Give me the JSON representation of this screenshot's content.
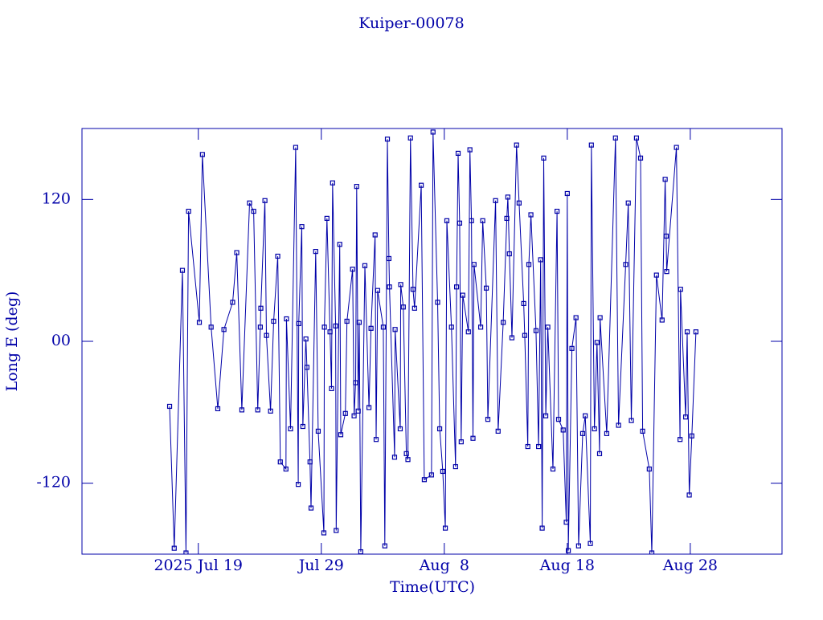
{
  "chart_data": {
    "type": "line",
    "title": "Kuiper-00078",
    "x_label": "Time(UTC)",
    "y_label": "Long E (deg)",
    "color": "#0000a8",
    "xlim": [
      "2025-07-09T13:00",
      "2025-09-04T11:00"
    ],
    "xticks": [
      {
        "value": "2025-07-19T00:00",
        "label": "2025 Jul 19"
      },
      {
        "value": "2025-07-29T00:00",
        "label": "Jul 29"
      },
      {
        "value": "2025-08-08T00:00",
        "label": "Aug  8"
      },
      {
        "value": "2025-08-18T00:00",
        "label": "Aug 18"
      },
      {
        "value": "2025-08-28T00:00",
        "label": "Aug 28"
      }
    ],
    "ylim": [
      -180,
      180
    ],
    "yticks": [
      -120,
      {
        "value": 0,
        "label": "00"
      },
      120
    ],
    "x": [
      "2025-07-16T16:00",
      "2025-07-17T01:00",
      "2025-07-17T17:00",
      "2025-07-18T00:00",
      "2025-07-18T05:00",
      "2025-07-19T02:00",
      "2025-07-19T08:00",
      "2025-07-20T01:00",
      "2025-07-20T14:00",
      "2025-07-21T02:00",
      "2025-07-21T19:00",
      "2025-07-22T03:00",
      "2025-07-22T13:00",
      "2025-07-23T04:00",
      "2025-07-23T12:00",
      "2025-07-23T20:00",
      "2025-07-24T01:00",
      "2025-07-24T02:00",
      "2025-07-24T10:00",
      "2025-07-24T13:00",
      "2025-07-24T21:00",
      "2025-07-25T03:00",
      "2025-07-25T11:00",
      "2025-07-25T16:00",
      "2025-07-26T03:00",
      "2025-07-26T04:00",
      "2025-07-26T12:00",
      "2025-07-26T22:00",
      "2025-07-27T03:00",
      "2025-07-27T04:00",
      "2025-07-27T10:00",
      "2025-07-27T12:00",
      "2025-07-27T18:00",
      "2025-07-27T20:00",
      "2025-07-28T02:00",
      "2025-07-28T04:00",
      "2025-07-28T13:00",
      "2025-07-28T18:00",
      "2025-07-29T05:00",
      "2025-07-29T06:00",
      "2025-07-29T11:00",
      "2025-07-29T17:00",
      "2025-07-29T20:00",
      "2025-07-29T22:00",
      "2025-07-30T04:00",
      "2025-07-30T05:00",
      "2025-07-30T12:00",
      "2025-07-30T14:00",
      "2025-07-30T23:00",
      "2025-07-31T02:00",
      "2025-07-31T13:00",
      "2025-07-31T16:00",
      "2025-07-31T19:00",
      "2025-07-31T21:00",
      "2025-08-01T00:00",
      "2025-08-01T02:00",
      "2025-08-01T05:00",
      "2025-08-01T13:00",
      "2025-08-01T21:00",
      "2025-08-02T01:00",
      "2025-08-02T09:00",
      "2025-08-02T11:00",
      "2025-08-02T14:00",
      "2025-08-03T01:00",
      "2025-08-03T04:00",
      "2025-08-03T09:00",
      "2025-08-03T12:00",
      "2025-08-03T13:00",
      "2025-08-03T23:00",
      "2025-08-04T00:00",
      "2025-08-04T10:00",
      "2025-08-04T11:00",
      "2025-08-04T16:00",
      "2025-08-04T22:00",
      "2025-08-05T01:00",
      "2025-08-05T06:00",
      "2025-08-05T11:00",
      "2025-08-05T14:00",
      "2025-08-06T03:00",
      "2025-08-06T09:00",
      "2025-08-06T23:00",
      "2025-08-07T02:00",
      "2025-08-07T11:00",
      "2025-08-07T15:00",
      "2025-08-07T21:00",
      "2025-08-08T02:00",
      "2025-08-08T05:00",
      "2025-08-08T14:00",
      "2025-08-08T22:00",
      "2025-08-09T00:00",
      "2025-08-09T03:00",
      "2025-08-09T06:00",
      "2025-08-09T09:00",
      "2025-08-09T12:00",
      "2025-08-09T23:00",
      "2025-08-10T02:00",
      "2025-08-10T05:00",
      "2025-08-10T08:00",
      "2025-08-10T10:00",
      "2025-08-10T23:00",
      "2025-08-11T03:00",
      "2025-08-11T10:00",
      "2025-08-11T13:00",
      "2025-08-12T04:00",
      "2025-08-12T09:00",
      "2025-08-12T19:00",
      "2025-08-13T02:00",
      "2025-08-13T04:00",
      "2025-08-13T07:00",
      "2025-08-13T12:00",
      "2025-08-13T21:00",
      "2025-08-14T02:00",
      "2025-08-14T11:00",
      "2025-08-14T13:00",
      "2025-08-14T19:00",
      "2025-08-14T21:00",
      "2025-08-15T01:00",
      "2025-08-15T11:00",
      "2025-08-15T16:00",
      "2025-08-15T20:00",
      "2025-08-15T23:00",
      "2025-08-16T02:00",
      "2025-08-16T06:00",
      "2025-08-16T10:00",
      "2025-08-16T20:00",
      "2025-08-17T04:00",
      "2025-08-17T07:00",
      "2025-08-17T16:00",
      "2025-08-17T22:00",
      "2025-08-18T00:00",
      "2025-08-18T02:00",
      "2025-08-18T09:00",
      "2025-08-18T17:00",
      "2025-08-18T22:00",
      "2025-08-19T06:00",
      "2025-08-19T11:00",
      "2025-08-19T21:00",
      "2025-08-19T23:00",
      "2025-08-20T05:00",
      "2025-08-20T10:00",
      "2025-08-20T15:00",
      "2025-08-20T16:00",
      "2025-08-21T05:00",
      "2025-08-21T22:00",
      "2025-08-22T04:00",
      "2025-08-22T18:00",
      "2025-08-22T23:00",
      "2025-08-23T05:00",
      "2025-08-23T15:00",
      "2025-08-23T23:00",
      "2025-08-24T03:00",
      "2025-08-24T16:00",
      "2025-08-24T21:00",
      "2025-08-25T06:00",
      "2025-08-25T17:00",
      "2025-08-25T23:00",
      "2025-08-26T01:00",
      "2025-08-26T02:00",
      "2025-08-26T21:00",
      "2025-08-27T04:00",
      "2025-08-27T05:00",
      "2025-08-27T15:00",
      "2025-08-27T18:00",
      "2025-08-27T22:00",
      "2025-08-28T03:00",
      "2025-08-28T11:00"
    ],
    "values": [
      -55,
      -175,
      60,
      -179,
      110,
      16,
      158,
      12,
      -57,
      10,
      33,
      75,
      -58,
      117,
      110,
      -58,
      12,
      28,
      119,
      5,
      -59,
      17,
      72,
      -102,
      -108,
      19,
      -74,
      164,
      -121,
      15,
      97,
      -72,
      2,
      -22,
      -102,
      -141,
      76,
      -76,
      -162,
      12,
      104,
      8,
      -40,
      134,
      13,
      -160,
      82,
      -79,
      -61,
      17,
      61,
      -63,
      -35,
      131,
      -59,
      16,
      -178,
      64,
      -56,
      11,
      90,
      -83,
      43,
      12,
      -173,
      171,
      70,
      46,
      -98,
      10,
      -74,
      48,
      29,
      -95,
      -100,
      172,
      44,
      28,
      132,
      -117,
      -113,
      177,
      33,
      -74,
      -110,
      -158,
      102,
      12,
      -106,
      46,
      159,
      100,
      -85,
      39,
      8,
      162,
      102,
      -82,
      65,
      12,
      102,
      45,
      -66,
      119,
      -76,
      16,
      104,
      122,
      74,
      3,
      166,
      117,
      32,
      5,
      -89,
      65,
      107,
      9,
      -89,
      69,
      -158,
      155,
      -63,
      12,
      -108,
      110,
      -66,
      -75,
      -153,
      125,
      -177,
      -6,
      20,
      -173,
      -78,
      -63,
      -171,
      166,
      -74,
      -1,
      -95,
      20,
      -78,
      172,
      -71,
      65,
      117,
      -67,
      172,
      155,
      -76,
      -108,
      -179,
      56,
      18,
      137,
      89,
      59,
      164,
      -83,
      44,
      -64,
      8,
      -130,
      -80,
      8
    ]
  }
}
